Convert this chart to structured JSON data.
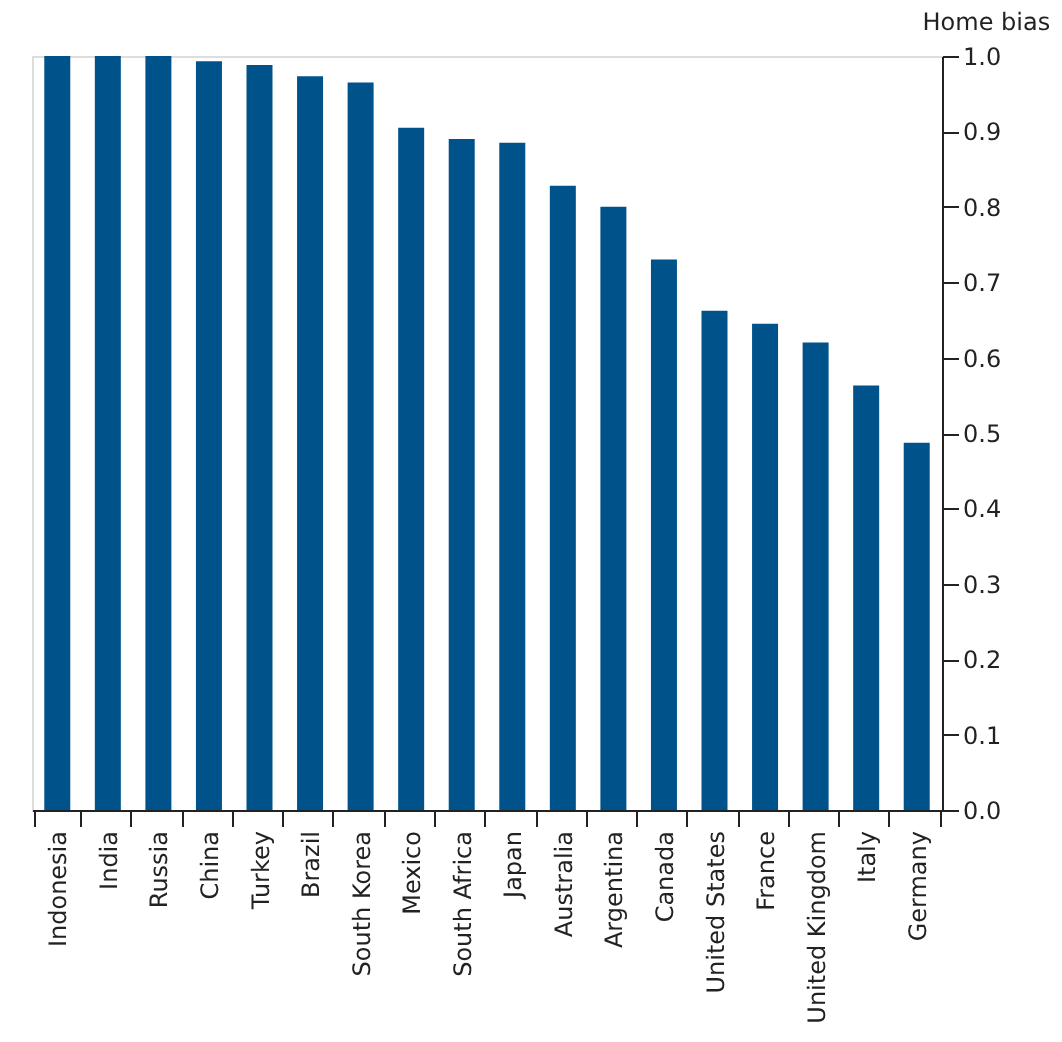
{
  "chart_data": {
    "type": "bar",
    "ylabel": "Home bias",
    "categories": [
      "Indonesia",
      "India",
      "Russia",
      "China",
      "Turkey",
      "Brazil",
      "South Korea",
      "Mexico",
      "South Africa",
      "Japan",
      "Australia",
      "Argentina",
      "Canada",
      "United States",
      "France",
      "United Kingdom",
      "Italy",
      "Germany"
    ],
    "values": [
      1.0,
      1.0,
      1.0,
      0.993,
      0.988,
      0.973,
      0.965,
      0.905,
      0.89,
      0.885,
      0.828,
      0.8,
      0.73,
      0.662,
      0.645,
      0.62,
      0.563,
      0.487
    ],
    "color": "#00538a",
    "ylim": [
      0,
      1.0
    ],
    "yticks": [
      {
        "value": 0,
        "label": "0.0"
      },
      0.1,
      0.2,
      0.3,
      0.4,
      0.5,
      0.6,
      0.7,
      0.8,
      0.9,
      {
        "value": 1,
        "label": "1.0"
      }
    ],
    "grid": false
  }
}
